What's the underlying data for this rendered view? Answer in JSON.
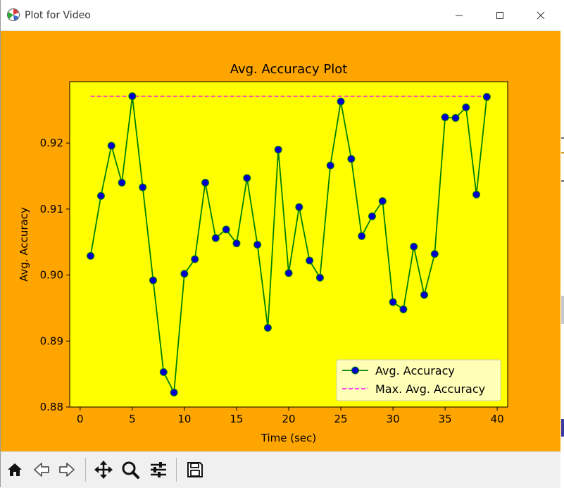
{
  "window": {
    "title": "Plot for Video",
    "minimize_icon": "minimize-icon",
    "maximize_icon": "maximize-icon",
    "close_icon": "close-icon"
  },
  "colors": {
    "figure_bg": "#ffa500",
    "axes_bg": "#ffff00",
    "line": "#008000",
    "marker": "#0000cd",
    "max_line": "#ff00ff"
  },
  "toolbar": {
    "icons": [
      "home-icon",
      "back-icon",
      "forward-icon",
      "pan-icon",
      "zoom-icon",
      "configure-icon",
      "save-icon"
    ]
  },
  "chart_data": {
    "type": "line",
    "title": "Avg. Accuracy Plot",
    "xlabel": "Time (sec)",
    "ylabel": "Avg. Accuracy",
    "xlim": [
      -1,
      41
    ],
    "ylim": [
      0.88,
      0.9293
    ],
    "xticks": [
      0,
      5,
      10,
      15,
      20,
      25,
      30,
      35,
      40
    ],
    "yticks": [
      0.88,
      0.89,
      0.9,
      0.91,
      0.92
    ],
    "ytick_labels": [
      "0.88",
      "0.89",
      "0.90",
      "0.91",
      "0.92"
    ],
    "grid": false,
    "legend_position": "lower-right",
    "series": [
      {
        "name": "Avg. Accuracy",
        "style": "solid line with circle markers",
        "x": [
          1,
          2,
          3,
          4,
          5,
          6,
          7,
          8,
          9,
          10,
          11,
          12,
          13,
          14,
          15,
          16,
          17,
          18,
          19,
          20,
          21,
          22,
          23,
          24,
          25,
          26,
          27,
          28,
          29,
          30,
          31,
          32,
          33,
          34,
          35,
          36,
          37,
          38,
          39
        ],
        "y": [
          0.9029,
          0.912,
          0.9196,
          0.914,
          0.9271,
          0.9133,
          0.8992,
          0.8853,
          0.8822,
          0.9002,
          0.9024,
          0.914,
          0.9056,
          0.9069,
          0.9048,
          0.9147,
          0.9046,
          0.892,
          0.919,
          0.9003,
          0.9103,
          0.9022,
          0.8996,
          0.9166,
          0.9263,
          0.9176,
          0.9059,
          0.9089,
          0.9112,
          0.8959,
          0.8948,
          0.9043,
          0.897,
          0.9032,
          0.9239,
          0.9238,
          0.9254,
          0.9122,
          0.927
        ]
      },
      {
        "name": "Max. Avg. Accuracy",
        "style": "dashed line",
        "x": [
          1,
          39
        ],
        "y": [
          0.9271,
          0.9271
        ]
      }
    ]
  }
}
